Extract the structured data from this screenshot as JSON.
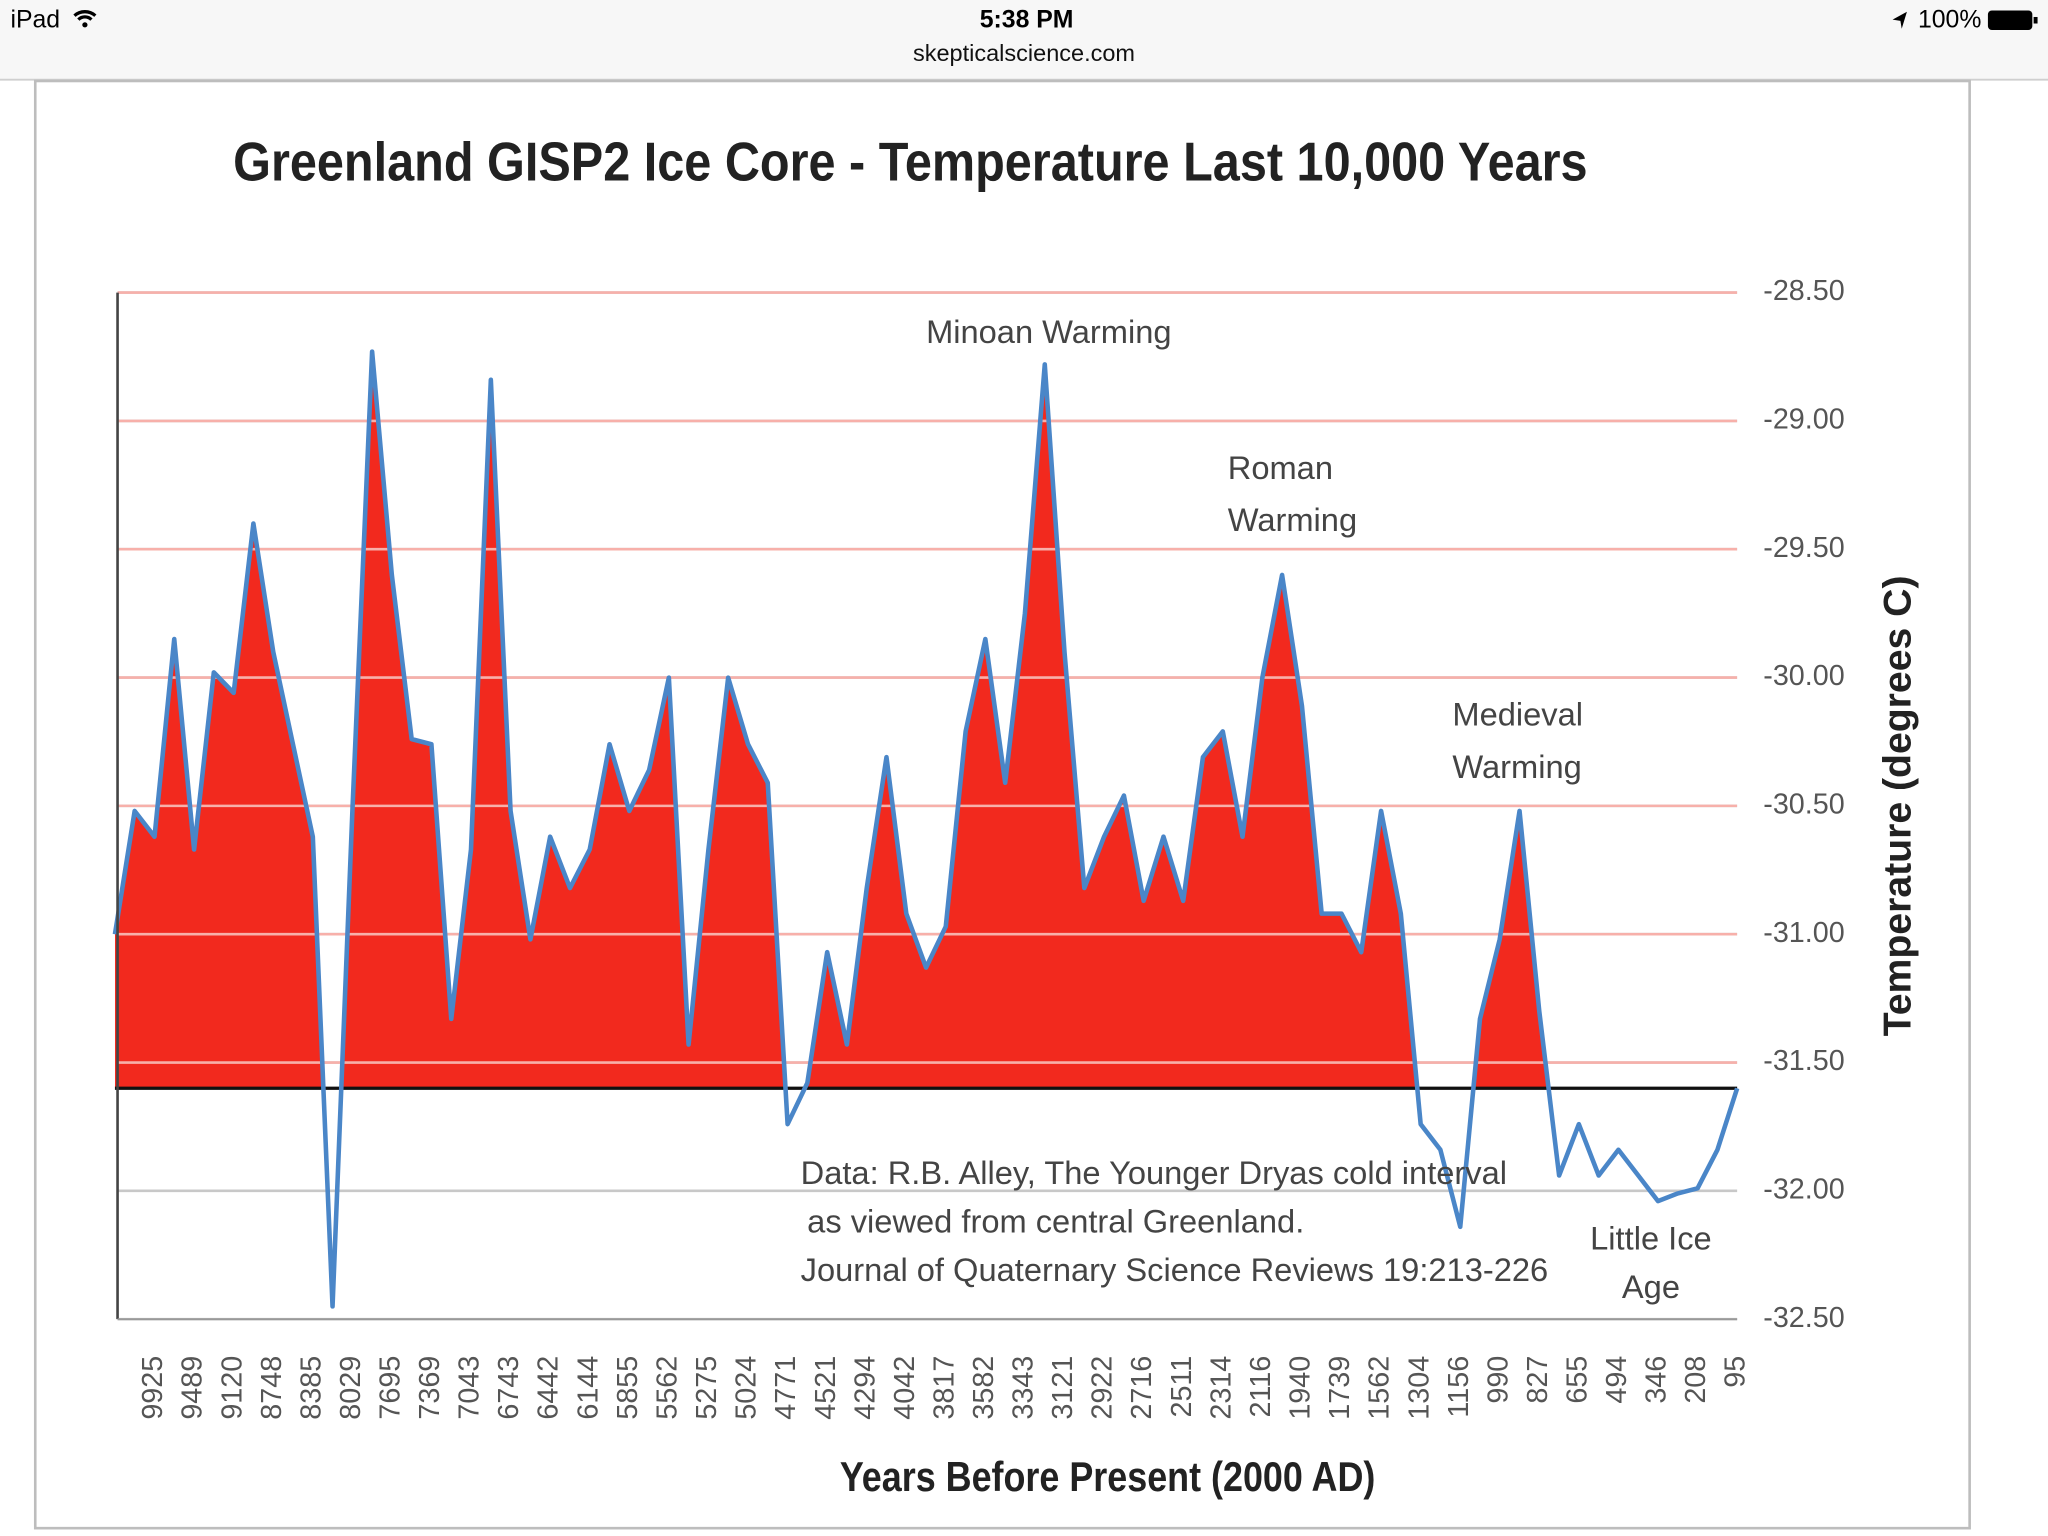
{
  "status_bar": {
    "device": "iPad",
    "time": "5:38 PM",
    "url": "skepticalscience.com",
    "battery": "100%"
  },
  "chart_data": {
    "type": "area",
    "title": "Greenland GISP2 Ice Core - Temperature  Last 10,000 Years",
    "x_label": "Years Before Present (2000 AD)",
    "y_label": "Temperature (degrees C)",
    "categories": [
      null,
      null,
      "9925",
      null,
      "9489",
      null,
      "9120",
      null,
      "8748",
      null,
      "8385",
      null,
      "8029",
      null,
      "7695",
      null,
      "7369",
      null,
      "7043",
      null,
      "6743",
      null,
      "6442",
      null,
      "6144",
      null,
      "5855",
      null,
      "5562",
      null,
      "5275",
      null,
      "5024",
      null,
      "4771",
      null,
      "4521",
      null,
      "4294",
      null,
      "4042",
      null,
      "3817",
      null,
      "3582",
      null,
      "3343",
      null,
      "3121",
      null,
      "2922",
      null,
      "2716",
      null,
      "2511",
      null,
      "2314",
      null,
      "2116",
      null,
      "1940",
      null,
      "1739",
      null,
      "1562",
      null,
      "1304",
      null,
      "1156",
      null,
      "990",
      null,
      "827",
      null,
      "655",
      null,
      "494",
      null,
      "346",
      null,
      "208",
      null,
      "95"
    ],
    "series": [
      {
        "color": "#4a86c8",
        "fill": "#f2291e",
        "values": [
          -31.0,
          -30.52,
          -30.62,
          -29.85,
          -30.67,
          -29.98,
          -30.06,
          -29.4,
          -29.9,
          -30.26,
          -30.62,
          -32.45,
          -30.52,
          -28.73,
          -29.6,
          -30.24,
          -30.26,
          -31.33,
          -30.67,
          -28.84,
          -30.52,
          -31.02,
          -30.62,
          -30.82,
          -30.67,
          -30.26,
          -30.52,
          -30.36,
          -30.0,
          -31.43,
          -30.67,
          -30.0,
          -30.26,
          -30.41,
          -31.74,
          -31.58,
          -31.07,
          -31.43,
          -30.82,
          -30.31,
          -30.92,
          -31.13,
          -30.97,
          -30.21,
          -29.85,
          -30.41,
          -29.75,
          -28.78,
          -29.9,
          -30.82,
          -30.62,
          -30.46,
          -30.87,
          -30.62,
          -30.87,
          -30.31,
          -30.21,
          -30.62,
          -30.0,
          -29.6,
          -30.11,
          -30.92,
          -30.92,
          -31.07,
          -30.52,
          -30.92,
          -31.74,
          -31.84,
          -32.14,
          -31.33,
          -31.02,
          -30.52,
          -31.3,
          -31.94,
          -31.74,
          -31.94,
          -31.84,
          -31.94,
          -32.04,
          -32.01,
          -31.99,
          -31.84,
          -31.6
        ]
      }
    ],
    "baseline": -31.6,
    "ylim": [
      -32.5,
      -28.5
    ],
    "yticks": [
      {
        "value": -32.5,
        "label": "-32.50"
      },
      {
        "value": -32.0,
        "label": "-32.00"
      },
      {
        "value": -31.5,
        "label": "-31.50"
      },
      {
        "value": -31.0,
        "label": "-31.00"
      },
      {
        "value": -30.5,
        "label": "-30.50"
      },
      {
        "value": -30.0,
        "label": "-30.00"
      },
      {
        "value": -29.5,
        "label": "-29.50"
      },
      {
        "value": -29.0,
        "label": "-29.00"
      },
      {
        "value": -28.5,
        "label": "-28.50"
      }
    ],
    "y_axis_side": "right",
    "grid": true,
    "annotations": [
      {
        "lines": [
          "Minoan Warming"
        ]
      },
      {
        "lines": [
          "Roman",
          "Warming"
        ]
      },
      {
        "lines": [
          "Medieval",
          "Warming"
        ]
      },
      {
        "lines": [
          "Little Ice",
          "Age"
        ]
      },
      {
        "lines": [
          "Data: R.B. Alley,  The Younger Dryas cold interval",
          "as viewed from central Greenland.",
          "Journal of Quaternary  Science Reviews 19:213-226"
        ]
      }
    ]
  }
}
